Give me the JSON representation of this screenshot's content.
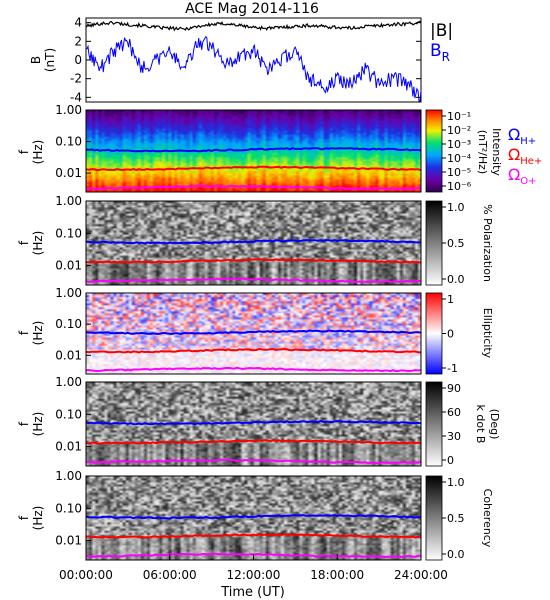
{
  "chart_data": {
    "title": "ACE Mag 2014-116",
    "type": "line+heatmap",
    "x_axis": {
      "label": "Time (UT)",
      "ticks": [
        "00:00:00",
        "06:00:00",
        "12:00:00",
        "18:00:00",
        "24:00:00"
      ],
      "range_hours": [
        0,
        24
      ]
    },
    "panels": [
      {
        "id": "field",
        "type": "line",
        "ylabel": "B",
        "yunit": "(nT)",
        "ylim": [
          -4.5,
          4.5
        ],
        "yticks": [
          "4",
          "2",
          "0",
          "-2",
          "-4"
        ],
        "ytick_values": [
          4,
          2,
          0,
          -2,
          -4
        ],
        "series": [
          {
            "name": "|B|",
            "color": "#000000",
            "x": [
              0,
              1,
              2,
              3,
              4,
              5,
              6,
              7,
              8,
              9,
              10,
              11,
              12,
              13,
              14,
              15,
              16,
              17,
              18,
              19,
              20,
              21,
              22,
              23,
              24
            ],
            "values": [
              3.6,
              3.9,
              4.0,
              3.8,
              3.7,
              3.5,
              3.4,
              3.3,
              3.6,
              3.8,
              3.9,
              3.7,
              3.5,
              3.4,
              3.5,
              3.6,
              3.7,
              3.6,
              3.5,
              3.4,
              3.6,
              3.7,
              3.8,
              3.9,
              4.0
            ]
          },
          {
            "name": "B",
            "subscript": "R",
            "color": "#0000ff",
            "x": [
              0,
              1,
              2,
              3,
              4,
              5,
              6,
              7,
              8,
              9,
              10,
              11,
              12,
              13,
              14,
              15,
              16,
              17,
              18,
              19,
              20,
              21,
              22,
              23,
              24
            ],
            "values": [
              1.5,
              -1.0,
              1.0,
              2.0,
              -1.0,
              0.0,
              1.0,
              -1.0,
              2.0,
              1.5,
              -0.5,
              0.5,
              1.0,
              -1.0,
              0.0,
              1.0,
              -2.0,
              -3.0,
              -2.0,
              -2.5,
              -1.0,
              -2.5,
              -2.0,
              -2.5,
              -4.0
            ]
          }
        ]
      },
      {
        "id": "intensity",
        "type": "heatmap",
        "ylabel": "f",
        "yunit": "(Hz)",
        "yticks": [
          "1.00",
          "0.10",
          "0.01"
        ],
        "colorbar": {
          "label": "Intensity",
          "unit": "(nT²/Hz)",
          "ticks": [
            "10⁻¹",
            "10⁻²",
            "10⁻³",
            "10⁻⁴",
            "10⁻⁵",
            "10⁻⁶"
          ]
        },
        "legend": [
          {
            "symbol": "Ω",
            "sub": "H+",
            "color": "#0000ff"
          },
          {
            "symbol": "Ω",
            "sub": "He+",
            "color": "#ff0000"
          },
          {
            "symbol": "Ω",
            "sub": "O+",
            "color": "#ff00ff"
          }
        ]
      },
      {
        "id": "polarization",
        "type": "heatmap",
        "ylabel": "f",
        "yunit": "(Hz)",
        "yticks": [
          "1.00",
          "0.10",
          "0.01"
        ],
        "colorbar": {
          "label": "% Polarization",
          "unit": "",
          "ticks": [
            "1.0",
            "0.5",
            "0.0"
          ]
        }
      },
      {
        "id": "ellipticity",
        "type": "heatmap",
        "ylabel": "f",
        "yunit": "(Hz)",
        "yticks": [
          "1.00",
          "0.10",
          "0.01"
        ],
        "colorbar": {
          "label": "Ellipticity",
          "unit": "",
          "ticks": [
            "1",
            "0",
            "-1"
          ]
        }
      },
      {
        "id": "kdotb",
        "type": "heatmap",
        "ylabel": "f",
        "yunit": "(Hz)",
        "yticks": [
          "1.00",
          "0.10",
          "0.01"
        ],
        "colorbar": {
          "label": "k dot B",
          "unit": "(Deg)",
          "ticks": [
            "90",
            "60",
            "30",
            "0"
          ]
        }
      },
      {
        "id": "coherency",
        "type": "heatmap",
        "ylabel": "f",
        "yunit": "(Hz)",
        "yticks": [
          "1.00",
          "0.10",
          "0.01"
        ],
        "colorbar": {
          "label": "Coherency",
          "unit": "",
          "ticks": [
            "1.0",
            "0.5",
            "0.0"
          ]
        }
      }
    ],
    "gyrofrequency_lines": [
      {
        "name": "ΩH+",
        "color": "#0000ff",
        "f_hz": 0.055
      },
      {
        "name": "ΩHe+",
        "color": "#ff0000",
        "f_hz": 0.014
      },
      {
        "name": "ΩO+",
        "color": "#ff00ff",
        "f_hz": 0.0035
      }
    ]
  }
}
